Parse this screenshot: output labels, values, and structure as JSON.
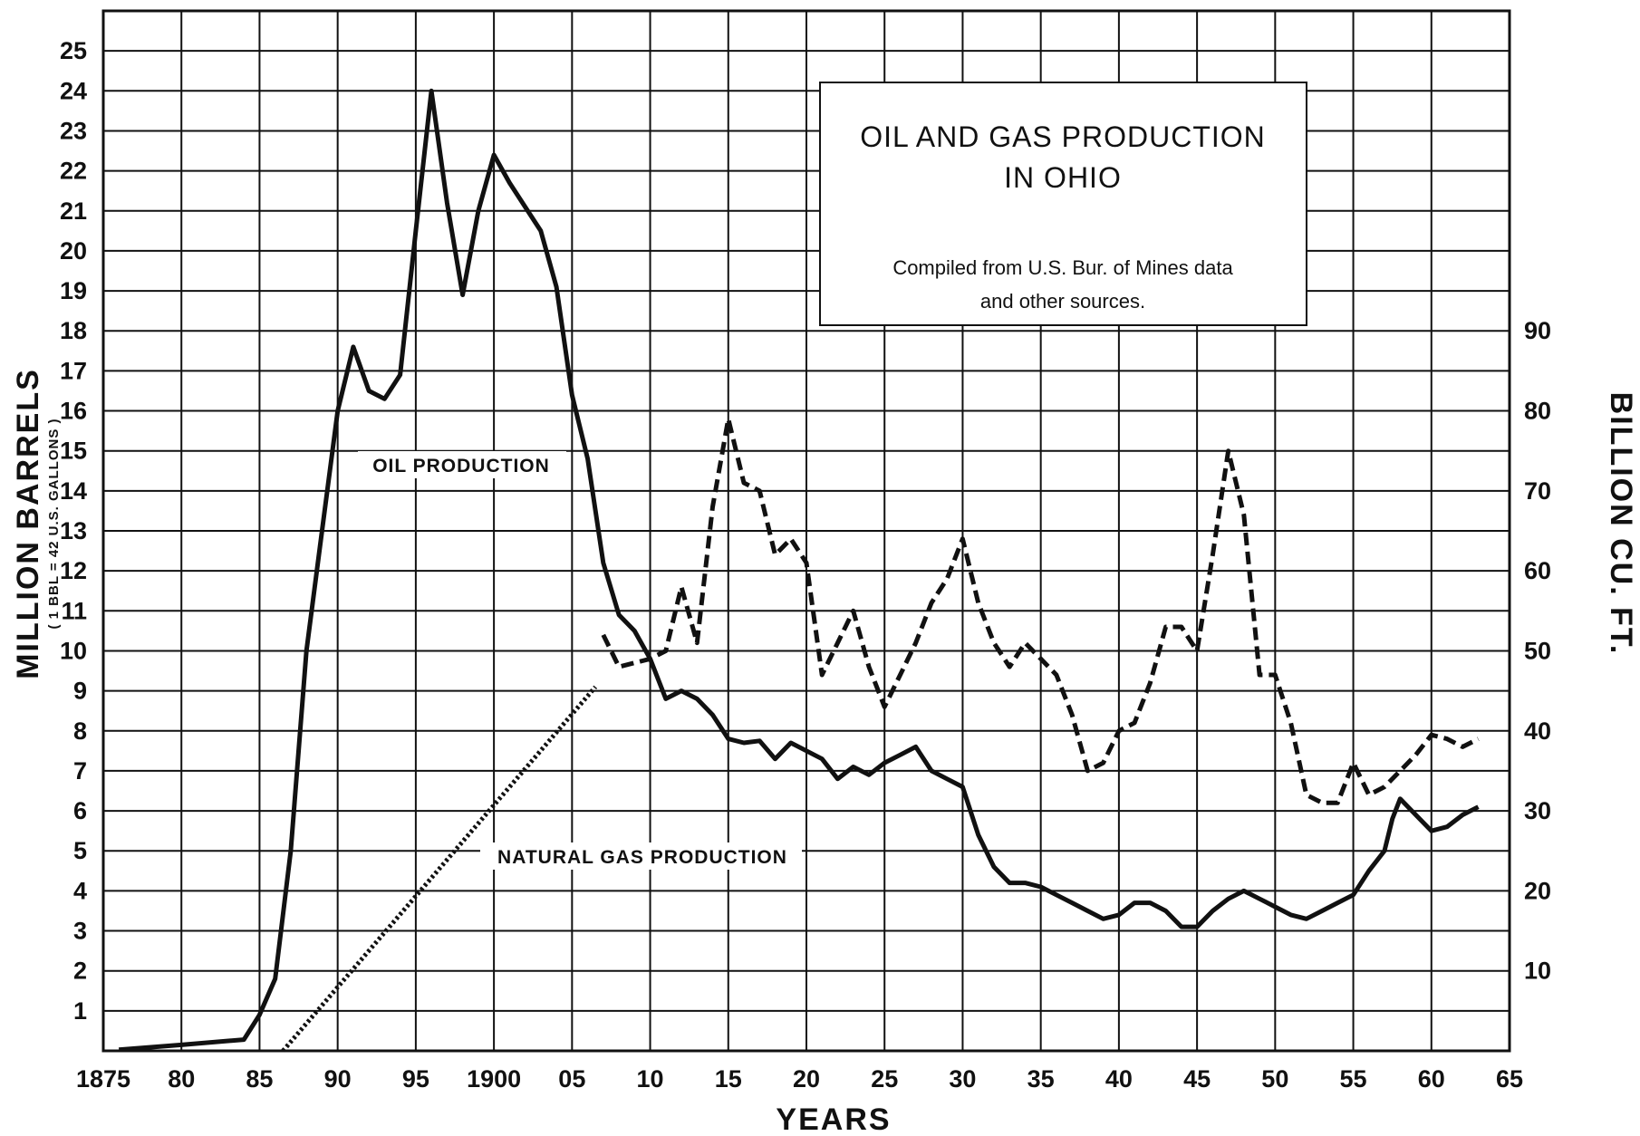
{
  "chart_data": {
    "type": "line",
    "title": [
      "OIL AND GAS PRODUCTION",
      "IN OHIO"
    ],
    "note": [
      "Compiled from U.S. Bur. of Mines data",
      "and other sources."
    ],
    "xlabel": "YEARS",
    "ylabel_left": "MILLION BARRELS",
    "ylabel_left_sub": "( 1 BBL = 42 U.S. GALLONS )",
    "ylabel_right": "BILLION CU. FT.",
    "xlim": [
      1875,
      1965
    ],
    "ylim_left": [
      0,
      26
    ],
    "ylim_right": [
      0,
      130
    ],
    "grid": true,
    "x_ticks": [
      {
        "value": 1875,
        "label": "1875"
      },
      {
        "value": 1880,
        "label": "80"
      },
      {
        "value": 1885,
        "label": "85"
      },
      {
        "value": 1890,
        "label": "90"
      },
      {
        "value": 1895,
        "label": "95"
      },
      {
        "value": 1900,
        "label": "1900"
      },
      {
        "value": 1905,
        "label": "05"
      },
      {
        "value": 1910,
        "label": "10"
      },
      {
        "value": 1915,
        "label": "15"
      },
      {
        "value": 1920,
        "label": "20"
      },
      {
        "value": 1925,
        "label": "25"
      },
      {
        "value": 1930,
        "label": "30"
      },
      {
        "value": 1935,
        "label": "35"
      },
      {
        "value": 1940,
        "label": "40"
      },
      {
        "value": 1945,
        "label": "45"
      },
      {
        "value": 1950,
        "label": "50"
      },
      {
        "value": 1955,
        "label": "55"
      },
      {
        "value": 1960,
        "label": "60"
      },
      {
        "value": 1965,
        "label": "65"
      }
    ],
    "y_ticks_left": [
      "1",
      "2",
      "3",
      "4",
      "5",
      "6",
      "7",
      "8",
      "9",
      "10",
      "11",
      "12",
      "13",
      "14",
      "15",
      "16",
      "17",
      "18",
      "19",
      "20",
      "21",
      "22",
      "23",
      "24",
      "25"
    ],
    "y_ticks_right": [
      "10",
      "20",
      "30",
      "40",
      "50",
      "60",
      "70",
      "80",
      "90"
    ],
    "series": [
      {
        "name": "OIL PRODUCTION",
        "axis": "left",
        "style": "solid",
        "x": [
          1876,
          1880,
          1884,
          1885,
          1886,
          1887,
          1888,
          1889,
          1890,
          1891,
          1892,
          1893,
          1894,
          1895,
          1896,
          1897,
          1898,
          1899,
          1900,
          1901,
          1902,
          1903,
          1904,
          1905,
          1906,
          1907,
          1908,
          1909,
          1910,
          1911,
          1912,
          1913,
          1914,
          1915,
          1916,
          1917,
          1918,
          1919,
          1920,
          1921,
          1922,
          1923,
          1924,
          1925,
          1926,
          1927,
          1928,
          1929,
          1930,
          1931,
          1932,
          1933,
          1934,
          1935,
          1936,
          1937,
          1938,
          1939,
          1940,
          1941,
          1942,
          1943,
          1944,
          1945,
          1946,
          1947,
          1948,
          1949,
          1950,
          1951,
          1952,
          1953,
          1954,
          1955,
          1956,
          1957,
          1957.5,
          1958,
          1959,
          1960,
          1961,
          1962,
          1963
        ],
        "values": [
          0.03,
          0.15,
          0.28,
          0.9,
          1.8,
          5,
          10,
          13,
          16,
          17.6,
          16.5,
          16.3,
          16.9,
          20.5,
          24,
          21.2,
          18.9,
          21,
          22.4,
          21.7,
          21.1,
          20.5,
          19.1,
          16.4,
          14.8,
          12.2,
          10.9,
          10.5,
          9.8,
          8.8,
          9,
          8.8,
          8.4,
          7.8,
          7.7,
          7.75,
          7.3,
          7.7,
          7.5,
          7.3,
          6.8,
          7.1,
          6.9,
          7.2,
          7.4,
          7.6,
          7,
          6.8,
          6.6,
          5.4,
          4.6,
          4.2,
          4.2,
          4.1,
          3.9,
          3.7,
          3.5,
          3.3,
          3.4,
          3.7,
          3.7,
          3.5,
          3.1,
          3.1,
          3.5,
          3.8,
          4,
          3.8,
          3.6,
          3.4,
          3.3,
          3.5,
          3.7,
          3.9,
          4.5,
          5,
          5.8,
          6.3,
          5.9,
          5.5,
          5.6,
          5.9,
          6.1
        ]
      },
      {
        "name": "NATURAL GAS PRODUCTION",
        "axis": "right",
        "style": "dashed",
        "x": [
          1907,
          1908,
          1910,
          1911,
          1912,
          1913,
          1914,
          1915,
          1916,
          1917,
          1918,
          1919,
          1920,
          1921,
          1922,
          1923,
          1924,
          1925,
          1926,
          1927,
          1928,
          1929,
          1930,
          1931,
          1932,
          1933,
          1934,
          1935,
          1936,
          1937,
          1938,
          1939,
          1940,
          1941,
          1942,
          1943,
          1944,
          1945,
          1946,
          1947,
          1948,
          1949,
          1950,
          1951,
          1952,
          1953,
          1954,
          1955,
          1956,
          1957,
          1958,
          1959,
          1960,
          1961,
          1962,
          1963
        ],
        "values": [
          52,
          48,
          49,
          50,
          58,
          51,
          68,
          79,
          71,
          70,
          62,
          64,
          61,
          47,
          51,
          55,
          48,
          43,
          47,
          51,
          56,
          59,
          64,
          56,
          51,
          48,
          51,
          49,
          47,
          42,
          35,
          36,
          40,
          41,
          46,
          53,
          53,
          50,
          62,
          75,
          67,
          47,
          47,
          41,
          32,
          31,
          31,
          36,
          32,
          33,
          35,
          37,
          39.5,
          39,
          38,
          39
        ]
      },
      {
        "name": "NATURAL GAS PRODUCTION",
        "axis": "right",
        "style": "dotted",
        "x": [
          1886.5,
          1906.5
        ],
        "values": [
          0,
          45.5
        ]
      }
    ],
    "annotations": [
      "OIL PRODUCTION",
      "NATURAL GAS PRODUCTION"
    ]
  }
}
